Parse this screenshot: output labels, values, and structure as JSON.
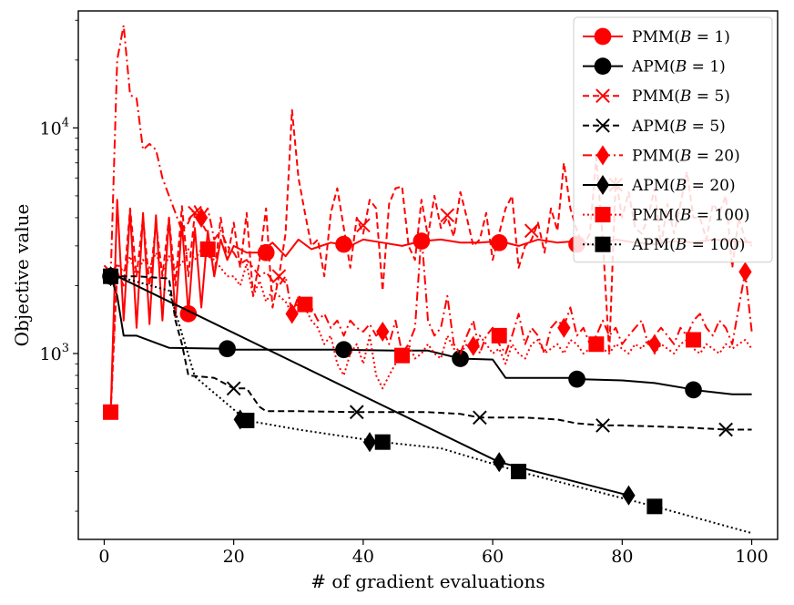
{
  "chart_data": {
    "type": "line",
    "title": "",
    "xlabel": "# of gradient evaluations",
    "ylabel": "Objective value",
    "yscale": "log",
    "xlim": [
      -4,
      104
    ],
    "ylim": [
      150,
      33000
    ],
    "xticks": [
      0,
      20,
      40,
      60,
      80,
      100
    ],
    "yticks": [
      {
        "value": 1000,
        "base": "10",
        "exp": "3"
      },
      {
        "value": 10000,
        "base": "10",
        "exp": "4"
      }
    ],
    "legend_position": "top-right",
    "series": [
      {
        "name": "PMM(B = 1)",
        "label_main": "PMM(",
        "label_var": "B",
        "label_rest": " = 1)",
        "color": "#ff0000",
        "dash": "solid",
        "marker": "circle",
        "x": [
          1,
          2,
          3,
          4,
          5,
          6,
          7,
          8,
          9,
          10,
          11,
          12,
          13,
          14,
          15,
          16,
          17,
          18,
          19,
          20,
          22,
          24,
          26,
          28,
          30,
          32,
          35,
          38,
          40,
          43,
          46,
          49,
          52,
          55,
          58,
          61,
          64,
          67,
          70,
          73,
          76,
          79,
          82,
          85,
          88,
          91,
          94,
          97,
          100
        ],
        "y": [
          550,
          4800,
          1400,
          4300,
          1300,
          4200,
          1350,
          4100,
          1400,
          4000,
          1450,
          3800,
          1500,
          3600,
          1600,
          3500,
          2200,
          3200,
          2600,
          3000,
          2800,
          2800,
          3100,
          2700,
          3200,
          2900,
          3100,
          3000,
          3200,
          3100,
          3000,
          3150,
          3200,
          3100,
          3100,
          3150,
          3000,
          3200,
          3100,
          3150,
          3000,
          3200,
          3100,
          3050,
          3150,
          3100,
          3200,
          3150,
          3100
        ],
        "marker_x": [
          13,
          25,
          37,
          49,
          61,
          73
        ],
        "marker_y": [
          1500,
          2800,
          3050,
          3150,
          3100,
          3050
        ]
      },
      {
        "name": "APM(B = 1)",
        "label_main": "APM(",
        "label_var": "B",
        "label_rest": " = 1)",
        "color": "#000000",
        "dash": "solid",
        "marker": "circle",
        "x": [
          1,
          2,
          3,
          4,
          5,
          10,
          19,
          20,
          30,
          37,
          40,
          45,
          50,
          55,
          60,
          62,
          65,
          72,
          73,
          80,
          85,
          90,
          91,
          97,
          100
        ],
        "y": [
          2200,
          1800,
          1200,
          1200,
          1200,
          1060,
          1050,
          1040,
          1040,
          1040,
          1035,
          1030,
          1030,
          950,
          940,
          780,
          780,
          780,
          770,
          760,
          740,
          700,
          690,
          660,
          660
        ],
        "marker_x": [
          1,
          19,
          37,
          55,
          73,
          91
        ],
        "marker_y": [
          2200,
          1050,
          1040,
          950,
          770,
          690
        ]
      },
      {
        "name": "PMM(B = 5)",
        "label_main": "PMM(",
        "label_var": "B",
        "label_rest": " = 5)",
        "color": "#ff0000",
        "dash": "dashed",
        "marker": "x",
        "x": [
          1,
          2,
          3,
          4,
          5,
          6,
          7,
          8,
          9,
          10,
          11,
          12,
          13,
          14,
          15,
          16,
          17,
          18,
          19,
          20,
          21,
          22,
          23,
          24,
          25,
          26,
          27,
          28,
          29,
          30,
          31,
          32,
          33,
          34,
          35,
          36,
          37,
          38,
          39,
          40,
          41,
          42,
          43,
          44,
          45,
          46,
          47,
          48,
          49,
          50,
          51,
          52,
          53,
          54,
          55,
          56,
          57,
          58,
          59,
          60,
          61,
          62,
          63,
          64,
          65,
          66,
          67,
          68,
          69,
          70,
          71,
          72,
          73,
          74,
          75,
          76,
          77,
          78,
          79,
          80,
          81,
          82,
          83,
          84,
          85,
          86,
          87,
          88,
          89,
          90,
          91,
          92,
          93,
          94,
          95,
          96,
          97,
          98,
          99,
          100
        ],
        "y": [
          550,
          2300,
          2000,
          4400,
          2200,
          4000,
          2000,
          3800,
          2200,
          4000,
          2000,
          4500,
          2200,
          4200,
          3800,
          3400,
          2200,
          4000,
          2600,
          3800,
          2400,
          4200,
          1800,
          2600,
          4400,
          1600,
          2200,
          3400,
          12000,
          6000,
          4200,
          3000,
          3200,
          2200,
          4200,
          5400,
          3600,
          2400,
          4000,
          3400,
          4800,
          4400,
          1900,
          4600,
          5400,
          5500,
          3000,
          2600,
          4800,
          3300,
          5000,
          3600,
          4000,
          3300,
          5200,
          4000,
          3000,
          3200,
          4200,
          2600,
          3400,
          4400,
          5000,
          2400,
          3000,
          3200,
          3800,
          2800,
          4400,
          3500,
          7000,
          4400,
          3500,
          3000,
          3400,
          7400,
          3200,
          1000,
          6000,
          4000,
          5200,
          3600,
          3400,
          4000,
          5400,
          3000,
          4600,
          3400,
          4600,
          6400,
          4000,
          4000,
          3200,
          4600,
          4200,
          5000,
          2400,
          4000,
          3200,
          3000
        ],
        "marker_x": [
          1,
          14,
          27,
          40,
          53,
          66,
          79
        ],
        "marker_y": [
          2300,
          4200,
          2200,
          3700,
          4100,
          3500,
          5600
        ]
      },
      {
        "name": "APM(B = 5)",
        "label_main": "APM(",
        "label_var": "B",
        "label_rest": " = 5)",
        "color": "#000000",
        "dash": "dashed",
        "marker": "x",
        "x": [
          1,
          5,
          10,
          11,
          12,
          13,
          17,
          20,
          22,
          24,
          25,
          30,
          39,
          45,
          50,
          55,
          58,
          65,
          70,
          73,
          77,
          80,
          90,
          96,
          100
        ],
        "y": [
          2200,
          2200,
          2150,
          1400,
          1100,
          800,
          780,
          700,
          700,
          580,
          555,
          555,
          550,
          550,
          550,
          540,
          520,
          520,
          510,
          490,
          480,
          480,
          470,
          460,
          460
        ],
        "marker_x": [
          1,
          20,
          39,
          58,
          77,
          96
        ],
        "marker_y": [
          2200,
          700,
          550,
          520,
          480,
          460
        ]
      },
      {
        "name": "PMM(B = 20)",
        "label_main": "PMM(",
        "label_var": "B",
        "label_rest": " = 20)",
        "color": "#ff0000",
        "dash": "dashdot",
        "marker": "diamond",
        "x": [
          1,
          2,
          3,
          4,
          5,
          6,
          7,
          8,
          9,
          10,
          11,
          12,
          13,
          14,
          15,
          16,
          17,
          18,
          19,
          20,
          21,
          22,
          23,
          24,
          25,
          26,
          27,
          28,
          29,
          30,
          31,
          32,
          33,
          34,
          35,
          36,
          37,
          38,
          39,
          40,
          41,
          42,
          43,
          44,
          45,
          46,
          47,
          48,
          49,
          50,
          51,
          52,
          53,
          54,
          55,
          56,
          57,
          58,
          59,
          60,
          61,
          62,
          63,
          64,
          65,
          66,
          67,
          68,
          69,
          70,
          71,
          72,
          73,
          74,
          75,
          76,
          77,
          78,
          79,
          80,
          81,
          82,
          83,
          84,
          85,
          86,
          87,
          88,
          89,
          90,
          91,
          92,
          93,
          94,
          95,
          96,
          97,
          98,
          99,
          100
        ],
        "y": [
          2200,
          20000,
          28500,
          14000,
          13500,
          8000,
          8500,
          8000,
          6000,
          5000,
          4200,
          3500,
          3800,
          4500,
          4000,
          4400,
          3200,
          3500,
          3000,
          2800,
          2500,
          2600,
          2400,
          2200,
          2300,
          2100,
          2000,
          2200,
          1500,
          1800,
          1700,
          1600,
          1400,
          1500,
          1300,
          1400,
          1200,
          1400,
          1300,
          1250,
          1350,
          1200,
          1280,
          1100,
          1400,
          1000,
          1100,
          1300,
          3400,
          1400,
          1200,
          1300,
          1800,
          1100,
          1000,
          1200,
          1400,
          1000,
          1200,
          1300,
          1100,
          1000,
          1200,
          1500,
          1100,
          1300,
          1200,
          1000,
          1300,
          1400,
          1320,
          1600,
          1200,
          1300,
          1100,
          1200,
          1400,
          1200,
          1300,
          1100,
          1200,
          1300,
          1400,
          1100,
          1200,
          1300,
          1200,
          1100,
          1300,
          1200,
          1400,
          1500,
          1300,
          1200,
          1400,
          1300,
          1100,
          1600,
          2300,
          1250
        ],
        "marker_x": [
          15,
          29,
          43,
          57,
          71,
          85,
          99
        ],
        "marker_y": [
          4000,
          1500,
          1250,
          1080,
          1300,
          1100,
          2300
        ]
      },
      {
        "name": "APM(B = 20)",
        "label_main": "APM(",
        "label_var": "B",
        "label_rest": " = 20)",
        "color": "#000000",
        "dash": "solid",
        "marker": "diamond",
        "x": [
          1,
          2,
          61,
          81
        ],
        "y": [
          2200,
          2200,
          330,
          235
        ],
        "marker_x": [
          1,
          21,
          41,
          61,
          81
        ],
        "marker_y": [
          2200,
          510,
          405,
          330,
          235
        ]
      },
      {
        "name": "PMM(B = 100)",
        "label_main": "PMM(",
        "label_var": "B",
        "label_rest": " = 100)",
        "color": "#ff0000",
        "dash": "dotted",
        "marker": "square",
        "x": [
          1,
          2,
          3,
          4,
          5,
          6,
          7,
          8,
          9,
          10,
          11,
          12,
          13,
          14,
          15,
          16,
          17,
          18,
          19,
          20,
          21,
          22,
          23,
          24,
          25,
          26,
          27,
          28,
          29,
          30,
          31,
          32,
          33,
          34,
          35,
          36,
          37,
          38,
          39,
          40,
          41,
          42,
          43,
          44,
          45,
          46,
          47,
          48,
          49,
          50,
          51,
          52,
          53,
          54,
          55,
          56,
          57,
          58,
          59,
          60,
          61,
          62,
          63,
          64,
          65,
          66,
          67,
          68,
          69,
          70,
          71,
          72,
          73,
          74,
          75,
          76,
          77,
          78,
          79,
          80,
          81,
          82,
          83,
          84,
          85,
          86,
          87,
          88,
          89,
          90,
          91,
          92,
          93,
          94,
          95,
          96,
          97,
          98,
          99,
          100
        ],
        "y": [
          550,
          2500,
          2300,
          2700,
          2200,
          2600,
          2400,
          2800,
          2300,
          2700,
          2400,
          2500,
          2900,
          2600,
          2900,
          2700,
          2600,
          2400,
          2200,
          2200,
          2000,
          2500,
          1800,
          2100,
          1700,
          1900,
          1800,
          1700,
          1500,
          1700,
          1600,
          1400,
          1300,
          1100,
          1200,
          900,
          800,
          1000,
          1100,
          900,
          1200,
          800,
          700,
          800,
          900,
          950,
          1100,
          950,
          1000,
          1100,
          1000,
          950,
          1200,
          1050,
          1000,
          1100,
          1000,
          1200,
          1100,
          1000,
          1050,
          900,
          1100,
          1000,
          950,
          1100,
          1150,
          1000,
          1050,
          1100,
          1000,
          1150,
          1100,
          1000,
          1050,
          1100,
          1050,
          1000,
          1100,
          1050,
          1000,
          1100,
          1050,
          1150,
          1000,
          1100,
          1050,
          1000,
          1100,
          1150,
          1050,
          1000,
          1100,
          1050,
          1000,
          1100,
          1050,
          1100,
          1150,
          1050
        ],
        "marker_x": [
          1,
          16,
          31,
          46,
          61,
          76,
          91
        ],
        "marker_y": [
          550,
          2900,
          1650,
          980,
          1200,
          1100,
          1150
        ]
      },
      {
        "name": "APM(B = 100)",
        "label_main": "APM(",
        "label_var": "B",
        "label_rest": " = 100)",
        "color": "#000000",
        "dash": "dotted",
        "marker": "square",
        "x": [
          1,
          2,
          10,
          14,
          22,
          30,
          43,
          52,
          64,
          85,
          100
        ],
        "y": [
          2200,
          2200,
          1900,
          790,
          505,
          460,
          405,
          380,
          300,
          210,
          160
        ],
        "marker_x": [
          1,
          22,
          43,
          64,
          85
        ],
        "marker_y": [
          2200,
          505,
          405,
          300,
          210
        ]
      }
    ]
  }
}
